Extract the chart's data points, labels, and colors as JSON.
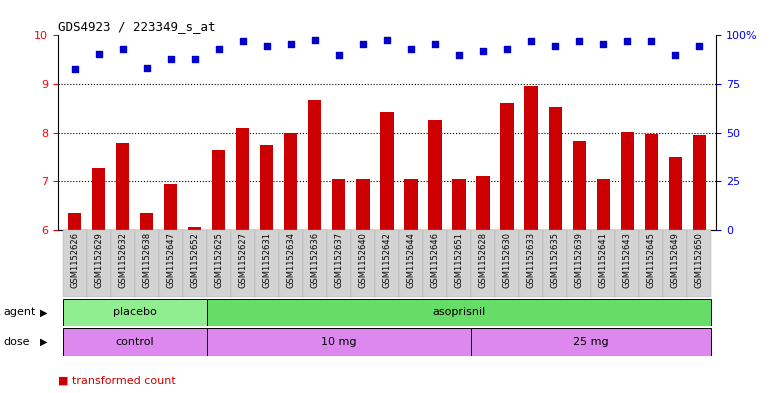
{
  "title": "GDS4923 / 223349_s_at",
  "samples": [
    "GSM1152626",
    "GSM1152629",
    "GSM1152632",
    "GSM1152638",
    "GSM1152647",
    "GSM1152652",
    "GSM1152625",
    "GSM1152627",
    "GSM1152631",
    "GSM1152634",
    "GSM1152636",
    "GSM1152637",
    "GSM1152640",
    "GSM1152642",
    "GSM1152644",
    "GSM1152646",
    "GSM1152651",
    "GSM1152628",
    "GSM1152630",
    "GSM1152633",
    "GSM1152635",
    "GSM1152639",
    "GSM1152641",
    "GSM1152643",
    "GSM1152645",
    "GSM1152649",
    "GSM1152650"
  ],
  "bar_values": [
    6.35,
    7.28,
    7.78,
    6.35,
    6.95,
    6.05,
    7.65,
    8.1,
    7.75,
    8.0,
    8.68,
    7.05,
    7.05,
    8.43,
    7.05,
    8.25,
    7.05,
    7.1,
    8.6,
    8.95,
    8.52,
    7.82,
    7.05,
    8.02,
    7.98,
    7.5,
    7.95
  ],
  "dot_values": [
    9.3,
    9.62,
    9.72,
    9.32,
    9.52,
    9.52,
    9.72,
    9.88,
    9.78,
    9.82,
    9.9,
    9.6,
    9.82,
    9.9,
    9.72,
    9.82,
    9.6,
    9.68,
    9.72,
    9.88,
    9.78,
    9.88,
    9.82,
    9.88,
    9.88,
    9.6,
    9.78
  ],
  "bar_color": "#cc0000",
  "dot_color": "#0000cc",
  "ylim": [
    6,
    10
  ],
  "yticks_left": [
    6,
    7,
    8,
    9,
    10
  ],
  "right_tick_positions": [
    6,
    7,
    8,
    9,
    10
  ],
  "right_tick_labels": [
    "0",
    "25",
    "50",
    "75",
    "100%"
  ],
  "grid_values": [
    7,
    8,
    9
  ],
  "placebo_count": 6,
  "asoprisnil_count": 21,
  "dose_control_count": 6,
  "dose_10mg_count": 11,
  "dose_25mg_count": 10,
  "color_placebo": "#90ee90",
  "color_asoprisnil": "#66dd66",
  "color_dose": "#dd88ee",
  "color_xticklabels": "#888888",
  "bg_plot": "#ffffff"
}
